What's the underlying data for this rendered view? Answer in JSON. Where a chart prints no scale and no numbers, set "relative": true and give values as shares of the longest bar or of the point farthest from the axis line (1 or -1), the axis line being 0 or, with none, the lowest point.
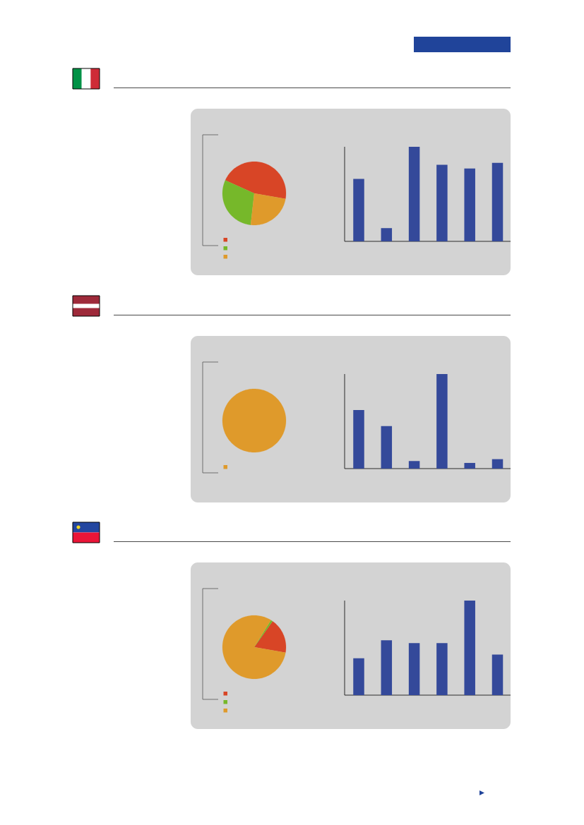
{
  "chart_data": [
    {
      "type": "pie",
      "categories": [
        null,
        null,
        null
      ],
      "values": [
        46,
        30,
        24
      ],
      "colors": [
        "#d84526",
        "#76b82a",
        "#df9a2b"
      ]
    },
    {
      "type": "bar",
      "categories": [
        null,
        null,
        null,
        null,
        null,
        null
      ],
      "values": [
        0.66,
        0.14,
        1,
        0.81,
        0.77,
        0.83
      ],
      "color": "#34499a",
      "relative": true
    },
    {
      "type": "pie",
      "categories": [
        null
      ],
      "values": [
        100
      ],
      "colors": [
        "#df9a2b"
      ]
    },
    {
      "type": "bar",
      "categories": [
        null,
        null,
        null,
        null,
        null,
        null
      ],
      "values": [
        0.62,
        0.45,
        0.08,
        1,
        0.06,
        0.1
      ],
      "color": "#34499a",
      "relative": true
    },
    {
      "type": "pie",
      "categories": [
        null,
        null,
        null
      ],
      "values": [
        18,
        1,
        81
      ],
      "colors": [
        "#d84526",
        "#76b82a",
        "#df9a2b"
      ]
    },
    {
      "type": "bar",
      "categories": [
        null,
        null,
        null,
        null,
        null,
        null
      ],
      "values": [
        0.39,
        0.58,
        0.55,
        0.55,
        1,
        0.43
      ],
      "color": "#34499a",
      "relative": true
    }
  ]
}
